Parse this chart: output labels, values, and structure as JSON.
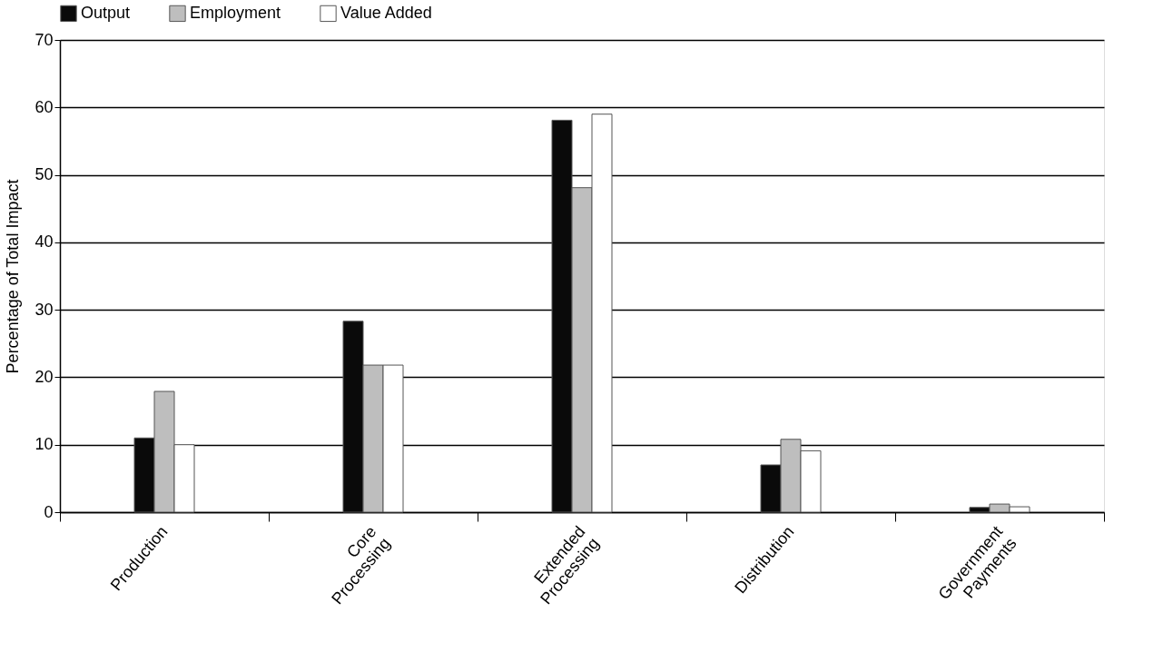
{
  "chart_data": {
    "type": "bar",
    "ylabel": "Percentage of Total Impact",
    "categories": [
      "Production",
      "Core Processing",
      "Extended Processing",
      "Distribution",
      "Government Payments"
    ],
    "series": [
      {
        "name": "Output",
        "color": "#0a0a0a",
        "values": [
          11,
          28.3,
          58.1,
          7,
          0.7
        ]
      },
      {
        "name": "Employment",
        "color": "#bebebe",
        "values": [
          17.9,
          21.8,
          48.1,
          10.8,
          1.2
        ]
      },
      {
        "name": "Value Added",
        "color": "#ffffff",
        "values": [
          10,
          21.8,
          59,
          9.1,
          0.8
        ]
      }
    ],
    "ylim": [
      0,
      70
    ],
    "yticks": [
      0,
      10,
      20,
      30,
      40,
      50,
      60,
      70
    ],
    "grid": "y",
    "legend": "top"
  }
}
